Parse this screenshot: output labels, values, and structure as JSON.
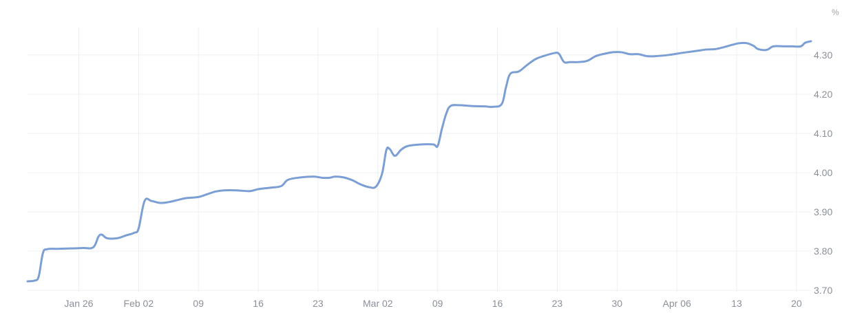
{
  "chart_data": {
    "type": "line",
    "title": "",
    "xlabel": "",
    "ylabel": "",
    "unit": "%",
    "grid": true,
    "legend": "none",
    "line_color": "#7b9fd4",
    "grid_color": "#eef0f3",
    "label_color": "#8a8f99",
    "ylim": [
      3.695,
      4.37
    ],
    "xlim": [
      20.0,
      111.7
    ],
    "y_ticks": [
      {
        "value": 3.7,
        "label": "3.70"
      },
      {
        "value": 3.8,
        "label": "3.80"
      },
      {
        "value": 3.9,
        "label": "3.90"
      },
      {
        "value": 4.0,
        "label": "4.00"
      },
      {
        "value": 4.1,
        "label": "4.10"
      },
      {
        "value": 4.2,
        "label": "4.20"
      },
      {
        "value": 4.3,
        "label": "4.30"
      }
    ],
    "x_ticks": [
      {
        "value": 26,
        "label": "Jan 26"
      },
      {
        "value": 33,
        "label": "Feb 02"
      },
      {
        "value": 40,
        "label": "09"
      },
      {
        "value": 47,
        "label": "16"
      },
      {
        "value": 54,
        "label": "23"
      },
      {
        "value": 61,
        "label": "Mar 02"
      },
      {
        "value": 68,
        "label": "09"
      },
      {
        "value": 75,
        "label": "16"
      },
      {
        "value": 82,
        "label": "23"
      },
      {
        "value": 89,
        "label": "30"
      },
      {
        "value": 96,
        "label": "Apr 06"
      },
      {
        "value": 103,
        "label": "13"
      },
      {
        "value": 110,
        "label": "20"
      }
    ],
    "x_value_note": "day of year",
    "series": [
      {
        "points": [
          [
            20.0,
            3.723
          ],
          [
            20.8,
            3.725
          ],
          [
            21.3,
            3.735
          ],
          [
            21.8,
            3.795
          ],
          [
            22.3,
            3.805
          ],
          [
            23.5,
            3.806
          ],
          [
            25.0,
            3.807
          ],
          [
            26.5,
            3.808
          ],
          [
            27.7,
            3.81
          ],
          [
            28.3,
            3.837
          ],
          [
            28.7,
            3.842
          ],
          [
            29.3,
            3.833
          ],
          [
            30.5,
            3.833
          ],
          [
            31.5,
            3.84
          ],
          [
            32.5,
            3.847
          ],
          [
            33.0,
            3.858
          ],
          [
            33.7,
            3.928
          ],
          [
            34.5,
            3.928
          ],
          [
            35.5,
            3.923
          ],
          [
            36.5,
            3.925
          ],
          [
            37.5,
            3.93
          ],
          [
            38.5,
            3.935
          ],
          [
            40.0,
            3.938
          ],
          [
            41.0,
            3.945
          ],
          [
            42.0,
            3.952
          ],
          [
            43.0,
            3.955
          ],
          [
            44.5,
            3.955
          ],
          [
            46.0,
            3.953
          ],
          [
            47.0,
            3.958
          ],
          [
            48.5,
            3.962
          ],
          [
            49.7,
            3.966
          ],
          [
            50.5,
            3.982
          ],
          [
            52.0,
            3.988
          ],
          [
            53.5,
            3.99
          ],
          [
            54.5,
            3.987
          ],
          [
            55.3,
            3.987
          ],
          [
            56.0,
            3.99
          ],
          [
            57.0,
            3.988
          ],
          [
            58.0,
            3.981
          ],
          [
            59.0,
            3.97
          ],
          [
            60.0,
            3.963
          ],
          [
            60.8,
            3.965
          ],
          [
            61.5,
            3.998
          ],
          [
            62.0,
            4.058
          ],
          [
            62.4,
            4.06
          ],
          [
            63.0,
            4.043
          ],
          [
            63.7,
            4.058
          ],
          [
            64.5,
            4.068
          ],
          [
            66.0,
            4.072
          ],
          [
            67.5,
            4.072
          ],
          [
            68.0,
            4.068
          ],
          [
            68.5,
            4.112
          ],
          [
            69.0,
            4.15
          ],
          [
            69.5,
            4.17
          ],
          [
            70.5,
            4.172
          ],
          [
            72.0,
            4.17
          ],
          [
            73.5,
            4.169
          ],
          [
            74.5,
            4.168
          ],
          [
            75.5,
            4.175
          ],
          [
            76.0,
            4.218
          ],
          [
            76.5,
            4.252
          ],
          [
            77.5,
            4.258
          ],
          [
            78.5,
            4.275
          ],
          [
            79.5,
            4.29
          ],
          [
            80.5,
            4.298
          ],
          [
            81.7,
            4.305
          ],
          [
            82.2,
            4.303
          ],
          [
            82.8,
            4.282
          ],
          [
            83.5,
            4.282
          ],
          [
            84.5,
            4.282
          ],
          [
            85.5,
            4.285
          ],
          [
            86.5,
            4.297
          ],
          [
            87.5,
            4.303
          ],
          [
            88.5,
            4.307
          ],
          [
            89.5,
            4.307
          ],
          [
            90.5,
            4.302
          ],
          [
            91.5,
            4.302
          ],
          [
            92.5,
            4.297
          ],
          [
            93.5,
            4.297
          ],
          [
            95.0,
            4.3
          ],
          [
            96.5,
            4.305
          ],
          [
            97.5,
            4.308
          ],
          [
            98.5,
            4.311
          ],
          [
            99.5,
            4.314
          ],
          [
            100.5,
            4.315
          ],
          [
            101.5,
            4.32
          ],
          [
            102.5,
            4.326
          ],
          [
            103.3,
            4.33
          ],
          [
            104.2,
            4.33
          ],
          [
            105.0,
            4.323
          ],
          [
            105.5,
            4.315
          ],
          [
            106.5,
            4.313
          ],
          [
            107.3,
            4.322
          ],
          [
            108.5,
            4.322
          ],
          [
            109.5,
            4.322
          ],
          [
            110.5,
            4.322
          ],
          [
            111.0,
            4.331
          ],
          [
            111.7,
            4.335
          ]
        ]
      }
    ]
  }
}
